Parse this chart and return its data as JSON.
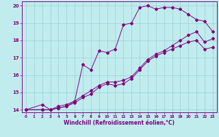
{
  "xlabel": "Windchill (Refroidissement éolien,°C)",
  "xlim": [
    -0.5,
    23.5
  ],
  "ylim": [
    13.85,
    20.25
  ],
  "yticks": [
    14,
    15,
    16,
    17,
    18,
    19,
    20
  ],
  "xticks": [
    0,
    1,
    2,
    3,
    4,
    5,
    6,
    7,
    8,
    9,
    10,
    11,
    12,
    13,
    14,
    15,
    16,
    17,
    18,
    19,
    20,
    21,
    22,
    23
  ],
  "bg_color": "#c0ecee",
  "grid_color": "#9dcdd4",
  "line_color": "#800080",
  "line1_x": [
    0,
    2,
    3,
    4,
    5,
    6,
    7,
    8,
    9,
    10,
    11,
    12,
    13,
    14,
    15,
    16,
    17,
    18,
    19,
    20,
    21,
    22,
    23
  ],
  "line1_y": [
    14.0,
    14.3,
    14.0,
    14.1,
    14.2,
    14.5,
    16.6,
    16.3,
    17.4,
    17.3,
    17.5,
    18.9,
    19.0,
    19.9,
    20.0,
    19.8,
    19.9,
    19.9,
    19.8,
    19.5,
    19.2,
    19.1,
    18.5
  ],
  "line2_x": [
    0,
    2,
    3,
    4,
    5,
    6,
    7,
    8,
    9,
    10,
    11,
    12,
    13,
    14,
    15,
    16,
    17,
    18,
    19,
    20,
    21,
    22,
    23
  ],
  "line2_y": [
    14.0,
    14.0,
    14.0,
    14.1,
    14.2,
    14.4,
    14.7,
    14.9,
    15.3,
    15.5,
    15.4,
    15.5,
    15.8,
    16.3,
    16.8,
    17.1,
    17.3,
    17.5,
    17.7,
    17.9,
    18.0,
    17.5,
    17.6
  ],
  "line3_x": [
    0,
    2,
    3,
    4,
    5,
    6,
    7,
    8,
    9,
    10,
    11,
    12,
    13,
    14,
    15,
    16,
    17,
    18,
    19,
    20,
    21,
    22,
    23
  ],
  "line3_y": [
    14.0,
    14.0,
    14.0,
    14.2,
    14.3,
    14.5,
    14.8,
    15.1,
    15.4,
    15.6,
    15.6,
    15.7,
    15.9,
    16.4,
    16.9,
    17.2,
    17.4,
    17.7,
    18.0,
    18.3,
    18.5,
    17.9,
    18.1
  ]
}
